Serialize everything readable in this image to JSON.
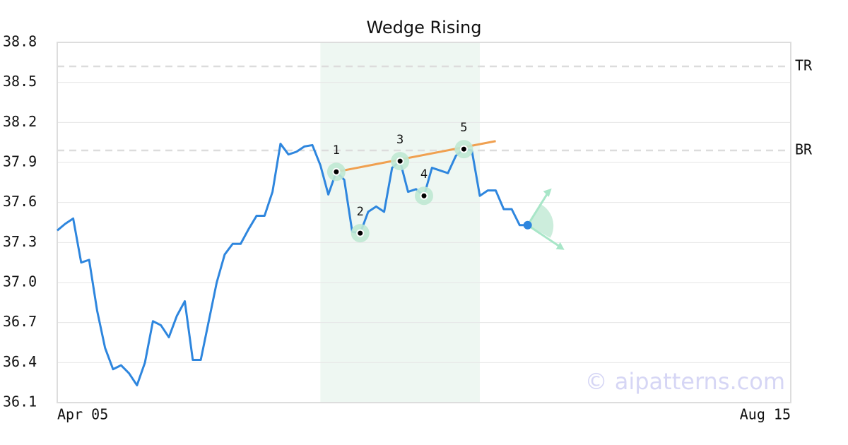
{
  "chart_data": {
    "type": "line",
    "title": "Wedge Rising",
    "watermark": "© aipatterns.com",
    "categories": [
      "Apr 05",
      null,
      null,
      null,
      null,
      null,
      null,
      null,
      null,
      null,
      null,
      null,
      null,
      null,
      null,
      null,
      null,
      null,
      null,
      null,
      null,
      null,
      null,
      null,
      null,
      null,
      null,
      null,
      null,
      null,
      null,
      null,
      null,
      null,
      null,
      null,
      null,
      null,
      null,
      null,
      null,
      null,
      null,
      null,
      null,
      null,
      null,
      null,
      null,
      null,
      null,
      null,
      null,
      null,
      null,
      null,
      null,
      null,
      null,
      null,
      null,
      null,
      null,
      null,
      null,
      null,
      null,
      null,
      null,
      null,
      null,
      null,
      null,
      null,
      null,
      null,
      null,
      null,
      null,
      null,
      null,
      null,
      null,
      null,
      null,
      null,
      null,
      null,
      null,
      null,
      null,
      null,
      "Aug 15"
    ],
    "series": [
      {
        "color": "#2e86de",
        "values": [
          37.39,
          37.44,
          37.48,
          37.15,
          37.17,
          36.79,
          36.51,
          36.35,
          36.38,
          36.32,
          36.23,
          36.4,
          36.71,
          36.68,
          36.59,
          36.75,
          36.86,
          36.42,
          36.42,
          36.71,
          37.0,
          37.21,
          37.29,
          37.29,
          37.4,
          37.5,
          37.5,
          37.68,
          38.04,
          37.96,
          37.98,
          38.02,
          38.03,
          37.88,
          37.66,
          37.83,
          37.77,
          37.38,
          37.37,
          37.53,
          37.57,
          37.53,
          37.86,
          37.91,
          37.68,
          37.7,
          37.65,
          37.86,
          37.84,
          37.82,
          37.95,
          38.0,
          37.99,
          37.65,
          37.69,
          37.69,
          37.55,
          37.55,
          37.43,
          37.43,
          null,
          null,
          null,
          null,
          null,
          null,
          null,
          null,
          null,
          null,
          null,
          null,
          null,
          null,
          null,
          null,
          null,
          null,
          null,
          null,
          null,
          null,
          null,
          null,
          null,
          null,
          null,
          null,
          null,
          null,
          null,
          null,
          null
        ]
      }
    ],
    "markers": {
      "x": [
        35,
        38,
        43,
        46,
        51
      ],
      "labels": [
        "1",
        "2",
        "3",
        "4",
        "5"
      ],
      "color": "#bfe8d3"
    },
    "trendline": {
      "x": [
        35,
        55
      ],
      "values": [
        37.83,
        38.06
      ],
      "color": "#f0a050"
    },
    "shade": {
      "x": [
        33,
        53
      ],
      "color": "#eef7f2"
    },
    "levels": [
      {
        "label": "TR",
        "value": 38.62
      },
      {
        "label": "BR",
        "value": 37.99
      }
    ],
    "ylim": [
      36.1,
      38.8
    ],
    "yticks": [
      36.1,
      36.4,
      36.7,
      {
        "value": 37,
        "label": "37.0"
      },
      37.3,
      37.6,
      37.9,
      38.2,
      38.5,
      38.8
    ],
    "grid": true
  }
}
